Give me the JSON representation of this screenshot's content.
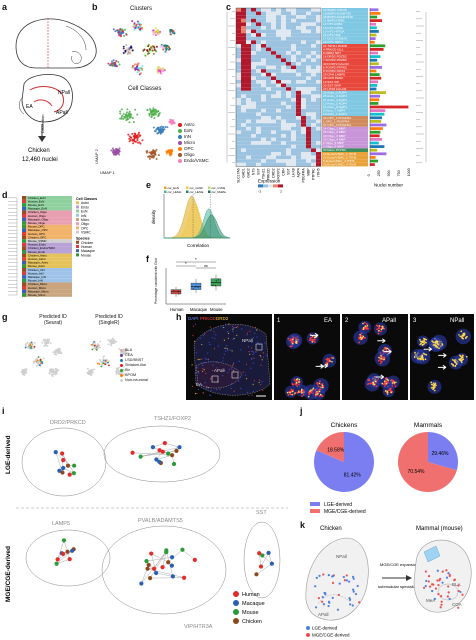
{
  "panels": {
    "a": {
      "label": "a",
      "chicken": "Chicken",
      "nuclei": "12,460 nuclei",
      "ea": "EA",
      "npall": "NPall",
      "apall": "APall",
      "dissection": "Dissection"
    },
    "b": {
      "label": "b",
      "title_top": "Clusters",
      "title_bottom": "Cell Classes",
      "axis_x": "UMAP 1",
      "axis_y": "UMAP 2",
      "classes": [
        {
          "name": "Astro",
          "color": "#e41a1c"
        },
        {
          "name": "ExN",
          "color": "#4daf4a"
        },
        {
          "name": "InN",
          "color": "#377eb8"
        },
        {
          "name": "Micro",
          "color": "#984ea3"
        },
        {
          "name": "OPC",
          "color": "#ff7f00"
        },
        {
          "name": "Oligo",
          "color": "#a65628"
        },
        {
          "name": "Endo/VSMC",
          "color": "#f781bf"
        }
      ]
    },
    "c": {
      "label": "c",
      "clusters": [
        {
          "name": "42 BMP3 CHST8",
          "color": "#7ec8e3"
        },
        {
          "name": "18 BMP3 ADAMTS5",
          "color": "#7ec8e3"
        },
        {
          "name": "38 BMP3 ADAMTS18",
          "color": "#7ec8e3"
        },
        {
          "name": "11 BMP3 DRD1",
          "color": "#7ec8e3"
        },
        {
          "name": "12 NTS AQB1",
          "color": "#7ec8e3"
        },
        {
          "name": "15 NTS CDH6",
          "color": "#7ec8e3"
        },
        {
          "name": "10 NTS HTR2A",
          "color": "#7ec8e3"
        },
        {
          "name": "21 NTS HGF",
          "color": "#7ec8e3"
        },
        {
          "name": "17 DCX ST8SIA2",
          "color": "#7ec8e3"
        },
        {
          "name": "22 NTS TRIP2",
          "color": "#7ec8e3"
        },
        {
          "name": "34 TSHZ1 RORB",
          "color": "#e8483c"
        },
        {
          "name": "4 PRKCD ISL1",
          "color": "#e8483c"
        },
        {
          "name": "8 DRD2 NPY",
          "color": "#e8483c"
        },
        {
          "name": "16 DRD2 PDZD2",
          "color": "#e8483c"
        },
        {
          "name": "7 FOXP2 PDZD2",
          "color": "#e8483c"
        },
        {
          "name": "40 FOXP2 CALCR",
          "color": "#e8483c"
        },
        {
          "name": "6 FOXP2 PTPRC",
          "color": "#e8483c"
        },
        {
          "name": "9 FOXP2 NOX3",
          "color": "#e8483c"
        },
        {
          "name": "29 CRH LAMP5",
          "color": "#e8483c"
        },
        {
          "name": "28 CRH PENK",
          "color": "#e8483c"
        },
        {
          "name": "19 SST VIP",
          "color": "#e8483c"
        },
        {
          "name": "20 SST GRP",
          "color": "#e8483c"
        },
        {
          "name": "23 LHX8 CALCR",
          "color": "#e8483c"
        },
        {
          "name": "26 Astro_2 AQP4",
          "color": "#7ec8e3"
        },
        {
          "name": "25 Astro_3 AQP4",
          "color": "#7ec8e3"
        },
        {
          "name": "27 Astro_4 AQP4",
          "color": "#7ec8e3"
        },
        {
          "name": "13 Astro_5 AQP4",
          "color": "#7ec8e3"
        },
        {
          "name": "31 Astro_6 AQP4",
          "color": "#7ec8e3"
        },
        {
          "name": "0 Astro_7 AQP4",
          "color": "#7ec8e3"
        },
        {
          "name": "14 Astro_1 AQP4",
          "color": "#7ec8e3"
        },
        {
          "name": "43 OPC_2 PDGFRA",
          "color": "#d18a5b"
        },
        {
          "name": "1 OPC_1 PDGFRA",
          "color": "#d18a5b"
        },
        {
          "name": "37 OPC_3 PDGFRA",
          "color": "#d18a5b"
        },
        {
          "name": "24 Oligo_1 MBP",
          "color": "#c896d8"
        },
        {
          "name": "36 Oligo_2 MBP",
          "color": "#c896d8"
        },
        {
          "name": "39 Oligo_3 MBP",
          "color": "#c896d8"
        },
        {
          "name": "35 Oligo_4 MBP",
          "color": "#c896d8"
        },
        {
          "name": "2 Oligo_5 MBP",
          "color": "#c896d8"
        },
        {
          "name": "3 Oligo_6 MBP",
          "color": "#c896d8"
        },
        {
          "name": "30 Micro PTPRC",
          "color": "#3c8e5a"
        },
        {
          "name": "22 Endo/VSMC_1 ITIH5",
          "color": "#e8a23a"
        },
        {
          "name": "32 Endo/VSMC_2 ITIH5",
          "color": "#e8a23a"
        },
        {
          "name": "5 Endo/VSMC_3 ITIH5",
          "color": "#e8a23a"
        },
        {
          "name": "33 Endo/VSMC_4 ITIH5",
          "color": "#e8a23a"
        }
      ],
      "genes": [
        "SLC17A6",
        "GAD1",
        "GAD2",
        "NTS",
        "SST",
        "TSHZ1",
        "PRKCD",
        "DRD2",
        "FOXP2",
        "CRH",
        "SST",
        "LHX8",
        "AQP4",
        "PDGFRA",
        "MBP",
        "PTPRC",
        "ITIH5"
      ],
      "expression_label": "Expression",
      "expression_min": "-1",
      "expression_max": "1",
      "nuclei_label": "Nuclei number",
      "nuclei_ticks": [
        "0",
        "250",
        "500",
        "750",
        "1000"
      ],
      "nuclei": [
        210,
        260,
        180,
        300,
        150,
        170,
        220,
        160,
        140,
        120,
        380,
        340,
        200,
        260,
        180,
        220,
        300,
        160,
        240,
        280,
        200,
        180,
        160,
        400,
        250,
        230,
        210,
        960,
        380,
        360,
        300,
        280,
        410,
        320,
        260,
        240,
        300,
        220,
        360,
        180,
        410,
        140,
        200,
        120
      ]
    },
    "d": {
      "label": "d",
      "rows": [
        "Chicken_ExN",
        "Human_ExN",
        "Mouse_ExN",
        "Macaque_ExN",
        "Chicken_Oligo",
        "Human_Oligo",
        "Macaque_Oligo",
        "Mouse_Oligo",
        "Mouse_OPC",
        "Macaque_OPC",
        "Human_OPC",
        "Chicken_OPC",
        "Mouse_VSMC",
        "Human_Endo",
        "Chicken_EndoVSMC",
        "Mouse_Endo",
        "Chicken_Astro",
        "Human_Astro",
        "Macaque_Astro",
        "Mouse_Astro",
        "Chicken_InN",
        "Human_InN",
        "Macaque_InN",
        "Mouse_InN",
        "Chicken_Micro",
        "Human_Micro",
        "Macaque_Micro",
        "Mouse_Micro"
      ],
      "legend_title_1": "Cell Classes",
      "legend_title_2": "Species",
      "cell_classes": [
        "Astro",
        "Endo",
        "ExN",
        "InN",
        "Micro",
        "Oligo",
        "OPC",
        "VSMC"
      ],
      "species": [
        "Chicken",
        "Human",
        "Macaque",
        "Mouse"
      ]
    },
    "e": {
      "label": "e",
      "xlabel": "Correlation",
      "ylabel": "density",
      "legend": [
        "cor_ExN",
        "cor_CoNb",
        "cor_CxMa",
        "cor_HuMo",
        "cor_HuMa",
        "cor_MoMa"
      ]
    },
    "f": {
      "label": "f",
      "ylabel": "Percentage consistent with Chicken",
      "categories": [
        "Human",
        "Macaque",
        "Mouse"
      ],
      "sig": [
        "*",
        "*",
        "ns"
      ]
    },
    "g": {
      "label": "g",
      "title_left": "Predicted ID",
      "sub_left": "(Seurat)",
      "title_right": "Predicted ID",
      "sub_right": "(SingleR)",
      "legend": [
        "BLA",
        "CEA",
        "LSD/BNST",
        "Striatum-like",
        "Str",
        "SPOM",
        "Non-neuronal"
      ]
    },
    "h": {
      "label": "h",
      "channels": [
        "DAPI",
        "PRKCD",
        "DRD2"
      ],
      "ea": "EA",
      "npall": "NPall",
      "apall": "APall",
      "inset_labels": [
        "1",
        "2",
        "3"
      ],
      "inset_titles": [
        "EA",
        "APall",
        "NPall"
      ]
    },
    "i": {
      "label": "i",
      "row_top": "LGE-derived",
      "row_bottom": "MGE/CGE-derived",
      "group_labels": [
        "DRD2/PRKCD",
        "TSHZ1/FOXP2",
        "SST",
        "LAMP5",
        "PVALB/ADAMTS5",
        "VIP/HTR3A"
      ],
      "legend": [
        {
          "name": "Human",
          "color": "#e32b2b"
        },
        {
          "name": "Macaque",
          "color": "#2a5fb4"
        },
        {
          "name": "Mouse",
          "color": "#2a9a3a"
        },
        {
          "name": "Chicken",
          "color": "#8a4a1e"
        }
      ]
    },
    "j": {
      "label": "j",
      "chickens_title": "Chickens",
      "mammals_title": "Mammals",
      "chickens": {
        "lge": 81.42,
        "mge": 18.58
      },
      "mammals": {
        "lge": 29.46,
        "mge": 70.54
      },
      "chickens_lge_label": "81.42%",
      "chickens_mge_label": "18.58%",
      "mammals_lge_label": "29.46%",
      "mammals_mge_label": "70.54%",
      "legend_lge": "LGE-derived",
      "legend_mge": "MGE/CGE-derived",
      "color_lge": "#7a7ef0",
      "color_mge": "#f07070"
    },
    "k": {
      "label": "k",
      "chicken": "Chicken",
      "mammal": "Mammal (mouse)",
      "npall": "NPall",
      "apall": "APall",
      "arrow_top": "MGE/CGE expansion",
      "arrow_bottom": "submodular specialization",
      "bla": "BLA",
      "coa": "COA",
      "mea": "MeA",
      "legend_lge": "LGE-derived",
      "legend_mge": "MGE/CGE-derived"
    }
  }
}
